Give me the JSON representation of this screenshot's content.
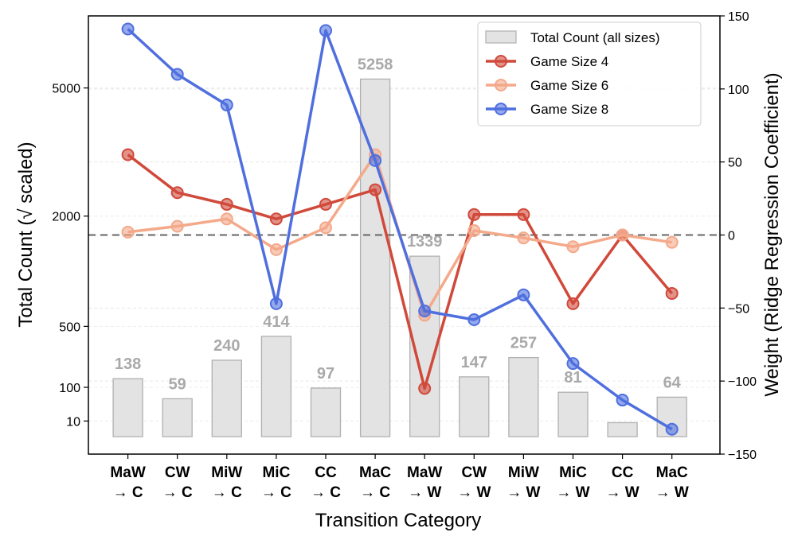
{
  "chart_data": {
    "type": "bar+line",
    "categories": [
      {
        "top": "MaW",
        "bottom": "→ C"
      },
      {
        "top": "CW",
        "bottom": "→ C"
      },
      {
        "top": "MiW",
        "bottom": "→ C"
      },
      {
        "top": "MiC",
        "bottom": "→ C"
      },
      {
        "top": "CC",
        "bottom": "→ C"
      },
      {
        "top": "MaC",
        "bottom": "→ C"
      },
      {
        "top": "MaW",
        "bottom": "→ W"
      },
      {
        "top": "CW",
        "bottom": "→ W"
      },
      {
        "top": "MiW",
        "bottom": "→ W"
      },
      {
        "top": "MiC",
        "bottom": "→ W"
      },
      {
        "top": "CC",
        "bottom": "→ W"
      },
      {
        "top": "MaC",
        "bottom": "→ W"
      }
    ],
    "bars": {
      "name": "Total Count (all sizes)",
      "values": [
        138,
        59,
        240,
        414,
        97,
        5258,
        1339,
        147,
        257,
        81,
        8,
        64
      ],
      "labels": [
        "138",
        "59",
        "240",
        "414",
        "97",
        "5258",
        "1339",
        "147",
        "257",
        "81",
        "",
        "64"
      ],
      "color": "#e3e3e3",
      "edge": "#b0b0b0"
    },
    "series": [
      {
        "name": "Game Size 4",
        "color": "#d0493a",
        "values": [
          55,
          29,
          21,
          11,
          21,
          31,
          -105,
          14,
          14,
          -47,
          0,
          -40
        ]
      },
      {
        "name": "Game Size 6",
        "color": "#f4a98a",
        "values": [
          2,
          6,
          11,
          -10,
          5,
          55,
          -55,
          3,
          -2,
          -8,
          0,
          -5
        ]
      },
      {
        "name": "Game Size 8",
        "color": "#4f6fdf",
        "values": [
          141,
          110,
          89,
          -47,
          140,
          51,
          -52,
          -58,
          -41,
          -88,
          -113,
          -133
        ]
      }
    ],
    "left_axis": {
      "label": "Total Count (√ scaled)",
      "ticks": [
        10,
        100,
        500,
        2000,
        5000
      ],
      "tick_labels": [
        "10",
        "100",
        "500",
        "2000",
        "5000"
      ]
    },
    "right_axis": {
      "label": "Weight (Ridge Regression Coefficient)",
      "ylim": [
        -150,
        150
      ],
      "ticks": [
        -150,
        -100,
        -50,
        0,
        50,
        100,
        150
      ],
      "tick_labels": [
        "−150",
        "−100",
        "−50",
        "0",
        "50",
        "100",
        "150"
      ]
    },
    "xlabel": "Transition Category",
    "legend_position": "top-right",
    "zero_line": {
      "value": 0,
      "color": "#666666"
    }
  }
}
